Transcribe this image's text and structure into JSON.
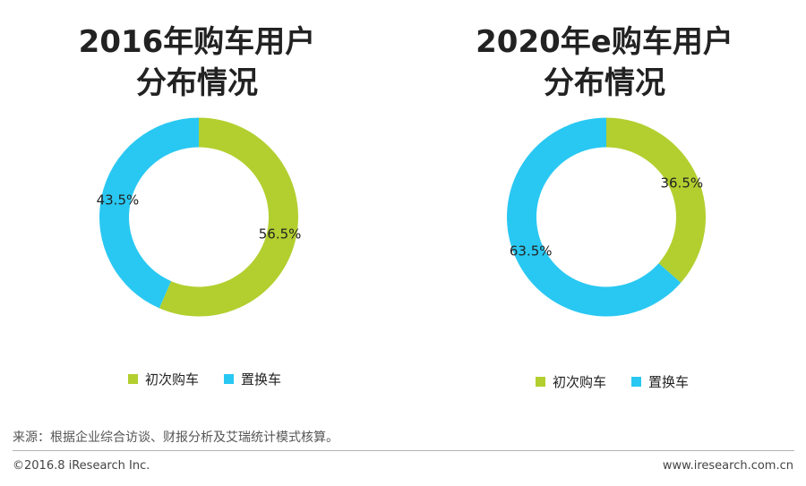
{
  "colors": {
    "first_purchase": "#b2cf2f",
    "replacement": "#29c8f2"
  },
  "chart_data": [
    {
      "type": "pie",
      "variant": "donut",
      "title_lines": [
        "2016年购车用户",
        "分布情况"
      ],
      "categories": [
        "初次购车",
        "置换车"
      ],
      "values": [
        56.5,
        43.5
      ],
      "value_labels": [
        "56.5%",
        "43.5%"
      ]
    },
    {
      "type": "pie",
      "variant": "donut",
      "title_lines": [
        "2020年e购车用户",
        "分布情况"
      ],
      "categories": [
        "初次购车",
        "置换车"
      ],
      "values": [
        36.5,
        63.5
      ],
      "value_labels": [
        "36.5%",
        "63.5%"
      ]
    }
  ],
  "source": "来源：根据企业综合访谈、财报分析及艾瑞统计模式核算。",
  "footer": {
    "copyright": "©2016.8 iResearch Inc.",
    "website": "www.iresearch.com.cn"
  }
}
